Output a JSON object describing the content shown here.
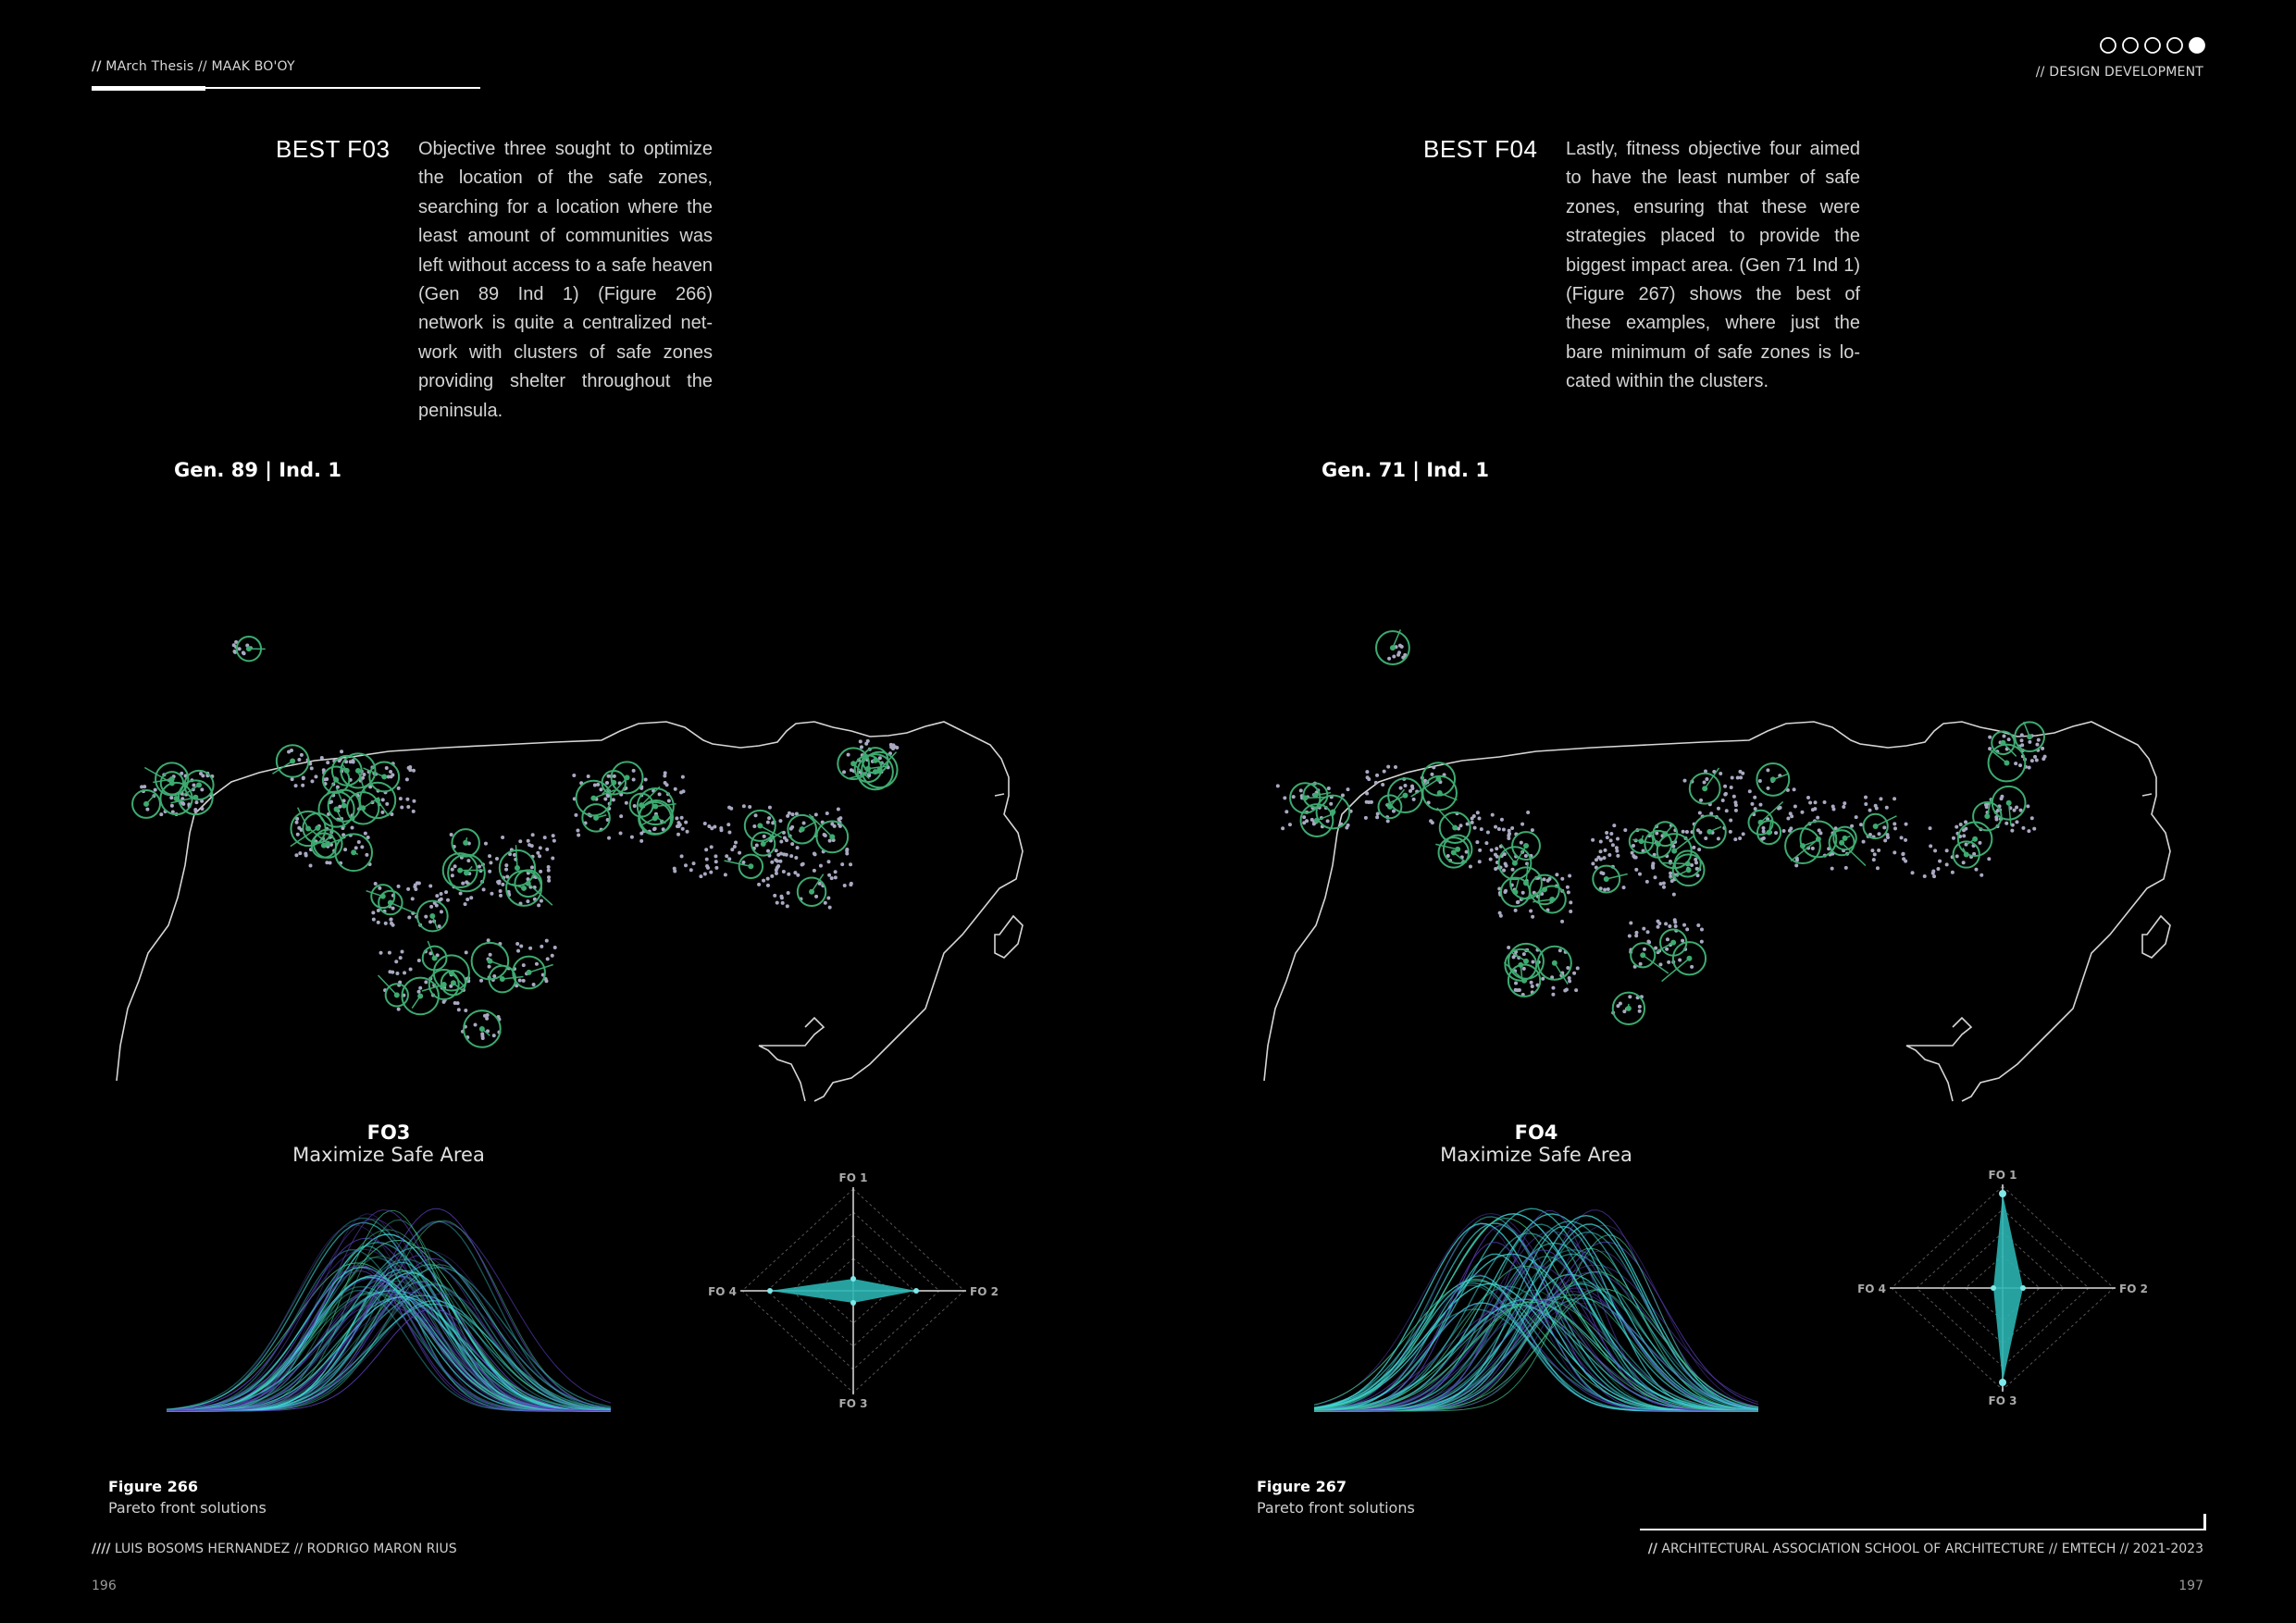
{
  "header": {
    "left_prefix": "//",
    "left_text": " MArch Thesis // MAAK BO'OY",
    "right_text": "// DESIGN DEVELOPMENT"
  },
  "pages": [
    {
      "title": "BEST F03",
      "paragraph": "Objective three sought to optimize the location of the safe zones, searching for a location where the least amount of communities was left without access to a safe heaven (Gen 89 Ind 1) (Figure 266) network is quite a centralized net-work with clusters of safe zones providing shelter throughout the peninsula.",
      "gen_label": "Gen. 89 | Ind. 1",
      "fo_name": "FO3",
      "fo_subtitle": "Maximize Safe Area",
      "radar_labels": [
        "FO 1",
        "FO 2",
        "FO 3",
        "FO 4"
      ],
      "figure_label": "Figure 266",
      "figure_caption": "Pareto front solutions",
      "page_number": "196"
    },
    {
      "title": "BEST F04",
      "paragraph": "Lastly, fitness objective four aimed to have the least number of safe zones, ensuring that these were strategies placed to provide the biggest impact area. (Gen 71 Ind 1) (Figure 267) shows the best of these examples, where just the bare minimum of safe zones is lo-cated within the clusters.",
      "gen_label": "Gen. 71 | Ind. 1",
      "fo_name": "FO4",
      "fo_subtitle": "Maximize Safe Area",
      "radar_labels": [
        "FO 1",
        "FO 2",
        "FO 3",
        "FO 4"
      ],
      "figure_label": "Figure 267",
      "figure_caption": "Pareto front solutions",
      "page_number": "197"
    }
  ],
  "footer": {
    "left_prefix": "////",
    "left_text": " LUIS BOSOMS HERNANDEZ // RODRIGO MARON RIUS",
    "right_prefix": "//",
    "right_text": " ARCHITECTURAL ASSOCIATION SCHOOL OF ARCHITECTURE //  EMTECH // 2021-2023"
  },
  "progress_dots": {
    "total": 5,
    "active": 5
  },
  "colors": {
    "background": "#000000",
    "safe_zone": "#3daa70",
    "community_dot": "#a9a9c2",
    "radar_fill": "#2ab3b0",
    "curve_cyan": "#3fd6d6",
    "curve_purple": "#5a3fb8"
  }
}
